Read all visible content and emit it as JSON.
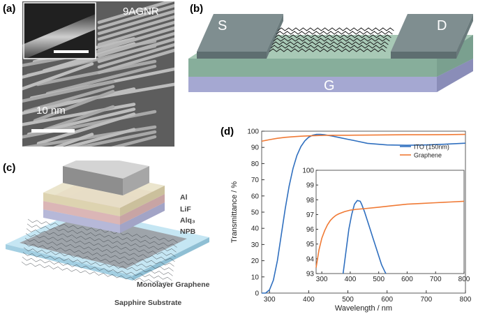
{
  "figure": {
    "panels": {
      "a": {
        "label": "(a)",
        "sample_label": "9AGNR",
        "scale_label": "10 nm"
      },
      "b": {
        "label": "(b)",
        "source_label": "S",
        "drain_label": "D",
        "gate_label": "G"
      },
      "c": {
        "label": "(c)",
        "layers": [
          "Al",
          "LiF",
          "Alq₃",
          "NPB"
        ],
        "graphene_label": "Monolayer Graphene",
        "substrate_label": "Sapphire Substrate"
      },
      "d": {
        "label": "(d)"
      }
    },
    "colors": {
      "ito": "#2f6fbf",
      "graphene": "#f07a35",
      "gate": "#9a9dc6",
      "dielectric": "#8fb6a4"
    }
  },
  "chart_data": {
    "type": "line",
    "xlabel": "Wavelength / nm",
    "ylabel": "Transmittance / %",
    "xlim": [
      280,
      800
    ],
    "ylim": [
      0,
      100
    ],
    "xticks": [
      300,
      400,
      500,
      600,
      700,
      800
    ],
    "yticks": [
      0,
      10,
      20,
      30,
      40,
      50,
      60,
      70,
      80,
      90,
      100
    ],
    "legend_position": "top-right",
    "series": [
      {
        "name": "ITO (150nm)",
        "x": [
          280,
          290,
          300,
          310,
          320,
          330,
          340,
          350,
          360,
          370,
          380,
          390,
          400,
          410,
          420,
          430,
          440,
          460,
          480,
          500,
          520,
          550,
          600,
          650,
          700,
          750,
          800
        ],
        "y": [
          0,
          0,
          2,
          8,
          20,
          36,
          52,
          66,
          77,
          85,
          90.5,
          94,
          96.3,
          97.5,
          98,
          98,
          97.8,
          97,
          96,
          95,
          94,
          92.5,
          91.5,
          91.3,
          91.5,
          92,
          92.6
        ]
      },
      {
        "name": "Graphene",
        "x": [
          280,
          300,
          320,
          340,
          360,
          380,
          400,
          420,
          440,
          460,
          480,
          500,
          550,
          600,
          650,
          700,
          750,
          800
        ],
        "y": [
          93.8,
          94.8,
          95.6,
          96.2,
          96.6,
          96.9,
          97.1,
          97.3,
          97.4,
          97.5,
          97.5,
          97.5,
          97.6,
          97.7,
          97.8,
          97.8,
          97.9,
          98
        ]
      }
    ],
    "inset": {
      "xlim": [
        280,
        800
      ],
      "ylim": [
        93,
        100
      ],
      "xticks": [
        300,
        400,
        500,
        600,
        700,
        800
      ],
      "yticks": [
        93,
        94,
        95,
        96,
        97,
        98,
        99,
        100
      ],
      "series": [
        {
          "name": "ITO (150nm)",
          "x": [
            375,
            385,
            395,
            405,
            415,
            425,
            435,
            440,
            450,
            460,
            470,
            480,
            490,
            500,
            510,
            520,
            525
          ],
          "y": [
            93,
            94.5,
            96,
            97,
            97.7,
            97.95,
            97.9,
            97.7,
            97.2,
            96.6,
            96,
            95.4,
            94.8,
            94.2,
            93.6,
            93.2,
            93
          ]
        },
        {
          "name": "Graphene",
          "x": [
            280,
            290,
            300,
            310,
            320,
            330,
            340,
            350,
            360,
            380,
            400,
            420,
            450,
            500,
            550,
            600,
            650,
            700,
            750,
            800
          ],
          "y": [
            93.4,
            94.6,
            95.4,
            95.9,
            96.3,
            96.6,
            96.8,
            96.95,
            97.05,
            97.2,
            97.3,
            97.35,
            97.4,
            97.5,
            97.6,
            97.7,
            97.75,
            97.8,
            97.85,
            97.9
          ]
        }
      ]
    }
  }
}
